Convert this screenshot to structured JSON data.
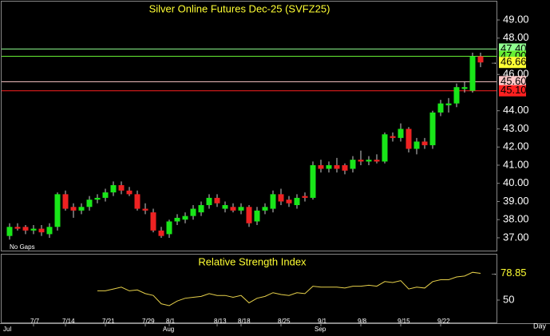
{
  "chart_data": [
    {
      "type": "candlestick",
      "title": "Silver Online Futures Dec-25 (SVFZ25)",
      "note": "No Gaps",
      "period": "Day",
      "categories": [
        null,
        null,
        null,
        "7/7",
        null,
        null,
        null,
        "7/14",
        null,
        null,
        null,
        null,
        "7/21",
        null,
        null,
        null,
        null,
        "7/29",
        null,
        null,
        "8/1",
        null,
        null,
        null,
        null,
        null,
        "8/13",
        null,
        null,
        "8/18",
        null,
        null,
        null,
        null,
        "8/25",
        null,
        null,
        null,
        null,
        "9/1",
        null,
        null,
        null,
        null,
        "9/8",
        null,
        null,
        null,
        null,
        "9/15",
        null,
        null,
        null,
        null,
        "9/22",
        null,
        null,
        null,
        null,
        null,
        null
      ],
      "months": [
        "Jul",
        null,
        null,
        null,
        null,
        null,
        null,
        null,
        null,
        null,
        null,
        null,
        null,
        null,
        null,
        null,
        null,
        null,
        null,
        null,
        "Aug",
        null,
        null,
        null,
        null,
        null,
        null,
        null,
        null,
        null,
        null,
        null,
        null,
        null,
        null,
        null,
        null,
        null,
        null,
        "Sep",
        null,
        null,
        null,
        null,
        null,
        null,
        null,
        null,
        null,
        null,
        null,
        null,
        null,
        null,
        null,
        null,
        null,
        null,
        null,
        null
      ],
      "open": [
        37.1,
        37.6,
        37.6,
        37.4,
        37.5,
        37.2,
        37.6,
        39.4,
        38.7,
        38.5,
        38.7,
        39.1,
        39.2,
        39.5,
        39.9,
        39.6,
        39.4,
        38.6,
        38.4,
        37.4,
        37.2,
        37.9,
        38.0,
        38.2,
        38.4,
        38.8,
        39.2,
        38.6,
        38.7,
        38.5,
        38.7,
        37.9,
        38.5,
        38.6,
        39.4,
        39.1,
        38.8,
        39.3,
        39.2,
        41.0,
        40.8,
        41.0,
        41.0,
        40.8,
        41.3,
        41.2,
        41.3,
        41.2,
        42.6,
        42.5,
        43.0,
        41.9,
        42.3,
        42.1,
        43.9,
        44.3,
        44.4,
        45.2,
        45.1,
        47.0
      ],
      "high": [
        37.8,
        37.8,
        37.7,
        37.7,
        37.7,
        37.8,
        39.5,
        39.6,
        38.9,
        38.9,
        39.3,
        39.4,
        39.7,
        40.1,
        40.1,
        39.8,
        39.6,
        38.9,
        38.6,
        37.6,
        38.0,
        38.3,
        38.4,
        38.8,
        39.0,
        39.4,
        39.4,
        39.0,
        38.9,
        38.9,
        38.8,
        38.7,
        38.9,
        39.6,
        39.7,
        39.3,
        39.4,
        39.5,
        41.2,
        41.3,
        41.2,
        41.4,
        41.1,
        41.5,
        41.8,
        41.5,
        41.6,
        42.8,
        42.8,
        43.3,
        43.1,
        42.5,
        42.5,
        44.0,
        44.6,
        44.7,
        45.5,
        45.6,
        47.2,
        47.2
      ],
      "low": [
        36.9,
        37.4,
        37.2,
        37.2,
        37.1,
        37.0,
        37.4,
        38.5,
        38.1,
        38.3,
        38.5,
        38.9,
        39.0,
        39.3,
        39.4,
        39.3,
        38.5,
        38.3,
        37.3,
        37.0,
        37.0,
        37.7,
        37.8,
        38.0,
        38.2,
        38.6,
        38.7,
        38.4,
        38.4,
        38.3,
        37.6,
        37.7,
        38.3,
        38.4,
        38.8,
        38.7,
        38.6,
        39.0,
        39.1,
        40.6,
        40.6,
        40.6,
        40.5,
        40.6,
        41.0,
        41.0,
        41.1,
        41.1,
        42.3,
        42.3,
        41.7,
        41.6,
        41.9,
        41.9,
        43.7,
        43.9,
        44.2,
        45.0,
        45.0,
        46.4
      ],
      "close": [
        37.6,
        37.5,
        37.4,
        37.5,
        37.3,
        37.6,
        39.4,
        38.6,
        38.5,
        38.7,
        39.1,
        39.2,
        39.5,
        39.9,
        39.6,
        39.4,
        38.6,
        38.5,
        37.4,
        37.1,
        37.9,
        38.1,
        38.2,
        38.6,
        38.8,
        39.2,
        38.9,
        38.8,
        38.5,
        38.7,
        37.8,
        38.5,
        38.7,
        39.4,
        39.0,
        38.9,
        39.2,
        39.2,
        41.0,
        40.8,
        41.0,
        40.8,
        40.7,
        41.3,
        41.2,
        41.3,
        41.2,
        42.7,
        42.5,
        43.0,
        41.9,
        42.3,
        42.1,
        43.9,
        44.4,
        44.4,
        45.3,
        45.3,
        47.0,
        46.66
      ],
      "up_color": "#19e619",
      "down_color": "#ee2222",
      "last_color": "#ffff33",
      "ylim": [
        36.25,
        50.1
      ],
      "yticks": [
        {
          "value": 37,
          "label": "37.00"
        },
        {
          "value": 38,
          "label": "38.00"
        },
        {
          "value": 39,
          "label": "39.00"
        },
        {
          "value": 40,
          "label": "40.00"
        },
        {
          "value": 41,
          "label": "41.00"
        },
        {
          "value": 42,
          "label": "42.00"
        },
        {
          "value": 43,
          "label": "43.00"
        },
        {
          "value": 44,
          "label": "44.00"
        },
        {
          "value": 46,
          "label": "46.00"
        },
        {
          "value": 48,
          "label": "48.00"
        },
        {
          "value": 49,
          "label": "49.00"
        }
      ],
      "reference_lines": [
        {
          "value": 47.4,
          "label": "47.40",
          "color": "#90ff90"
        },
        {
          "value": 47,
          "label": "47.00",
          "color": "#66ee33"
        },
        {
          "value": 45.6,
          "label": "45.60",
          "color": "#ffc8c8"
        },
        {
          "value": 45.1,
          "label": "45.10",
          "color": "#ff2020"
        }
      ]
    },
    {
      "type": "line",
      "title": "Relative Strength Index",
      "color": "#e6d04a",
      "values": [
        null,
        null,
        null,
        null,
        null,
        null,
        null,
        null,
        null,
        null,
        null,
        60,
        60,
        62,
        64,
        60,
        61,
        57,
        55,
        46,
        44,
        49,
        52,
        53,
        54,
        57,
        55,
        55,
        53,
        55,
        47,
        52,
        54,
        58,
        56,
        55,
        58,
        57,
        65,
        64,
        64,
        64,
        63,
        65,
        65,
        66,
        65,
        70,
        69,
        71,
        62,
        64,
        63,
        70,
        72,
        72,
        75,
        76,
        80,
        78.85
      ],
      "ylim": [
        25,
        100
      ],
      "yticks": [
        50
      ]
    }
  ]
}
